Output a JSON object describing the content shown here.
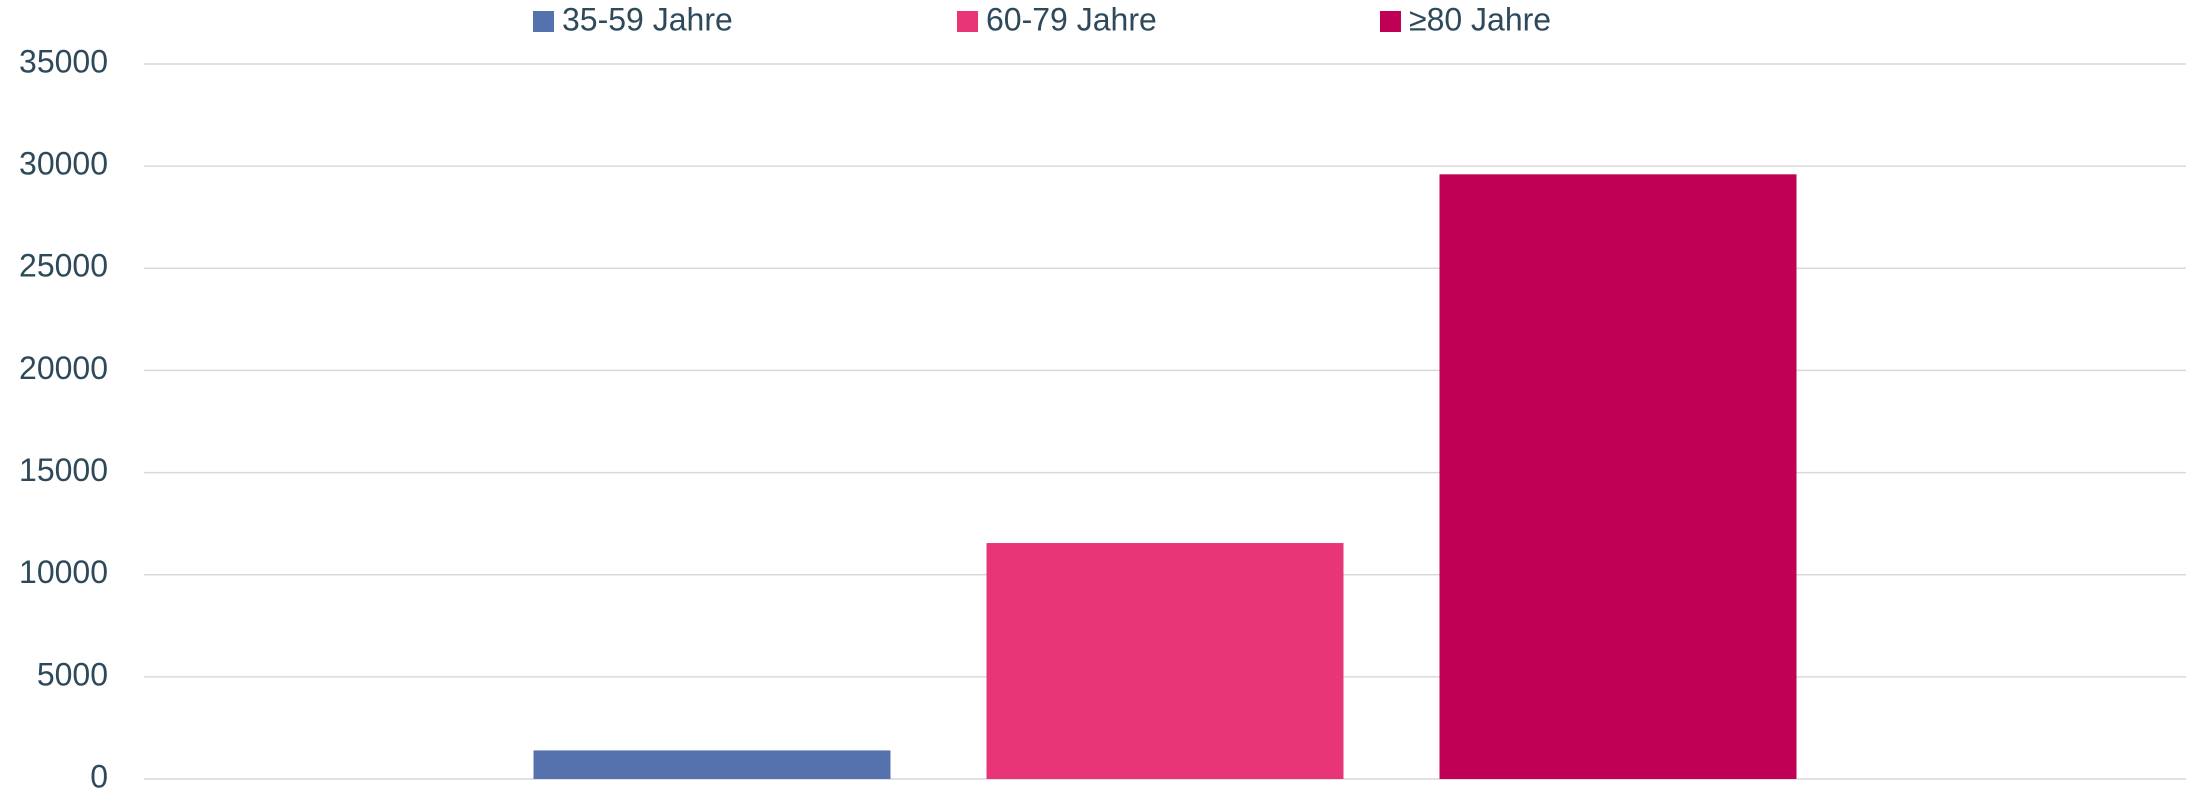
{
  "chart_data": {
    "type": "bar",
    "categories": [
      null
    ],
    "series": [
      {
        "name": "35-59 Jahre",
        "color": "#5672ae",
        "values": [
          1400
        ]
      },
      {
        "name": "60-79 Jahre",
        "color": "#e83577",
        "values": [
          11550
        ]
      },
      {
        "name": "≥80 Jahre",
        "color": "#c00055",
        "values": [
          29600
        ]
      }
    ],
    "ylim": [
      0,
      35000
    ],
    "yticks": [
      0,
      5000,
      10000,
      15000,
      20000,
      25000,
      30000,
      35000
    ],
    "grid": true,
    "legend": "top"
  }
}
